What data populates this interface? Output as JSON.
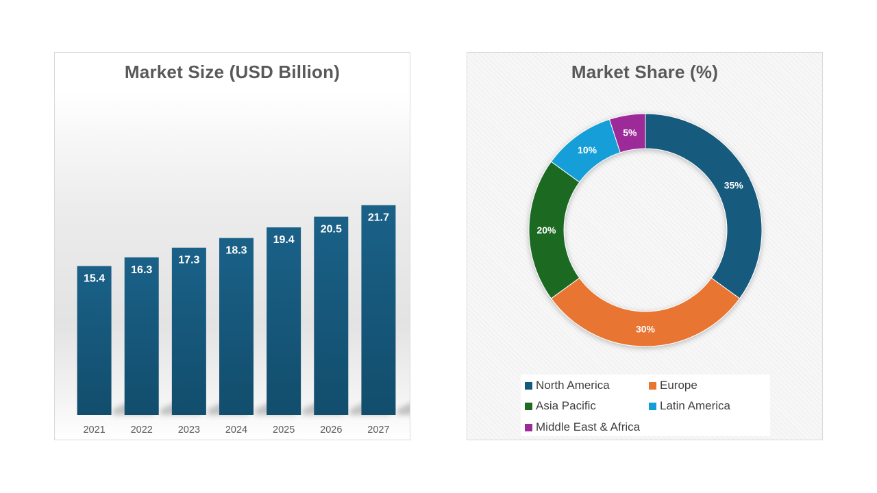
{
  "chart_data": [
    {
      "type": "bar",
      "title": "Market Size (USD Billion)",
      "categories": [
        "2021",
        "2022",
        "2023",
        "2024",
        "2025",
        "2026",
        "2027"
      ],
      "values": [
        15.4,
        16.3,
        17.3,
        18.3,
        19.4,
        20.5,
        21.7
      ],
      "value_labels": [
        "15.4",
        "16.3",
        "17.3",
        "18.3",
        "19.4",
        "20.5",
        "21.7"
      ],
      "xlabel": "",
      "ylabel": "",
      "ylim": [
        0,
        25
      ],
      "grid": false,
      "color": "#155a7e"
    },
    {
      "type": "pie",
      "style": "donut",
      "title": "Market Share (%)",
      "slices": [
        {
          "name": "North America",
          "value": 35,
          "label": "35%",
          "color": "#155a7e"
        },
        {
          "name": "Europe",
          "value": 30,
          "label": "30%",
          "color": "#e97532"
        },
        {
          "name": "Asia Pacific",
          "value": 20,
          "label": "20%",
          "color": "#1e6b24"
        },
        {
          "name": "Latin America",
          "value": 10,
          "label": "10%",
          "color": "#149ed8"
        },
        {
          "name": "Middle East & Africa",
          "value": 5,
          "label": "5%",
          "color": "#9c2b99"
        }
      ],
      "legend": "bottom"
    }
  ]
}
